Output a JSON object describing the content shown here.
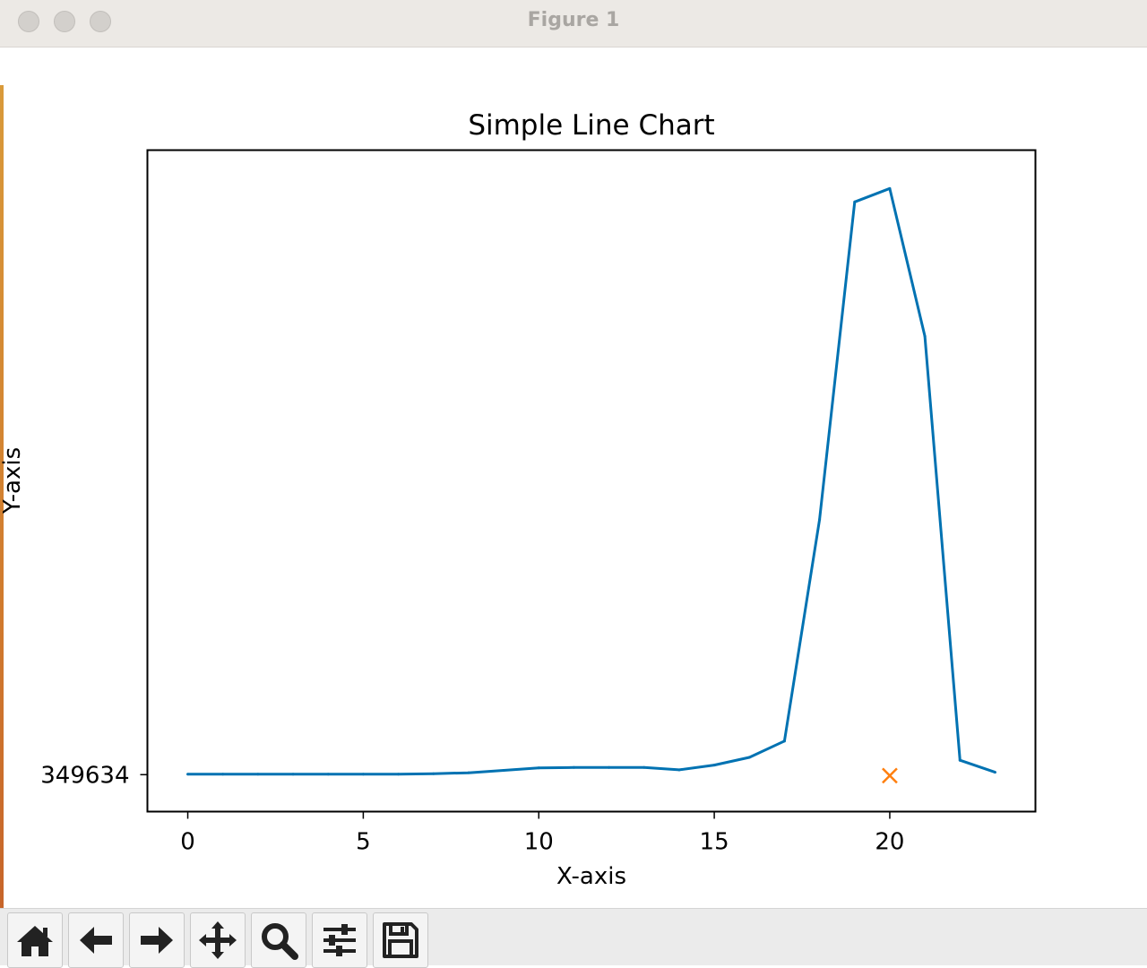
{
  "window": {
    "title": "Figure 1"
  },
  "toolbar": {
    "buttons": [
      {
        "name": "home-button",
        "icon": "home-icon"
      },
      {
        "name": "back-button",
        "icon": "arrow-left-icon"
      },
      {
        "name": "forward-button",
        "icon": "arrow-right-icon"
      },
      {
        "name": "pan-button",
        "icon": "move-icon"
      },
      {
        "name": "zoom-button",
        "icon": "magnifier-icon"
      },
      {
        "name": "configure-subplots-button",
        "icon": "sliders-icon"
      },
      {
        "name": "save-button",
        "icon": "floppy-disk-icon"
      }
    ]
  },
  "chart_data": {
    "type": "line",
    "title": "Simple Line Chart",
    "xlabel": "X-axis",
    "ylabel": "Y-axis",
    "xlim": [
      -1.15,
      24.15
    ],
    "ylim": [
      349557,
      350936
    ],
    "xticks": [
      0,
      5,
      10,
      15,
      20
    ],
    "yticks": [
      349634
    ],
    "grid": false,
    "colors": {
      "line": "#0072b2",
      "marker": "#ff7f0e"
    },
    "series": [
      {
        "x": [
          0,
          1,
          2,
          3,
          4,
          5,
          6,
          7,
          8,
          9,
          10,
          11,
          12,
          13,
          14,
          15,
          16,
          17,
          18,
          19,
          20,
          21,
          22,
          23
        ],
        "y": [
          349635,
          349635,
          349635,
          349635,
          349635,
          349635,
          349635,
          349636,
          349638,
          349643,
          349648,
          349649,
          349649,
          349649,
          349644,
          349654,
          349670,
          349704,
          350166,
          350828,
          350856,
          350548,
          349664,
          349639
        ]
      }
    ],
    "markers": [
      {
        "x": 20,
        "y": 349632,
        "symbol": "x"
      }
    ]
  }
}
